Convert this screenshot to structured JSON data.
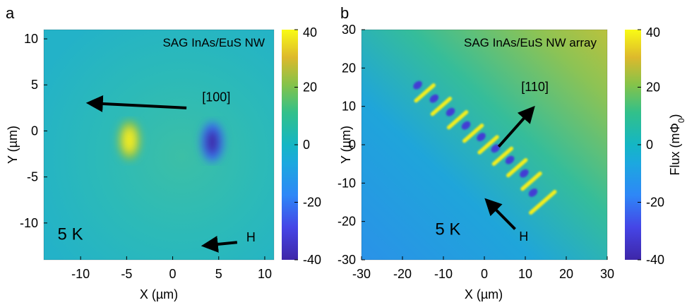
{
  "chart_data": [
    {
      "type": "heatmap",
      "panel_label": "a",
      "title": "SAG InAs/EuS NW",
      "xlabel": "X (µm)",
      "ylabel": "Y (µm)",
      "xlim": [
        -14,
        11
      ],
      "ylim": [
        -14,
        11
      ],
      "xticks": [
        -10,
        -5,
        0,
        5,
        10
      ],
      "xtick_labels": [
        "-10",
        "-5",
        "0",
        "5",
        "10"
      ],
      "yticks": [
        10,
        5,
        0,
        -5,
        -10
      ],
      "ytick_labels": [
        "10",
        "5",
        "0",
        "-5",
        "-10"
      ],
      "colorbar": {
        "range": [
          -40,
          40
        ],
        "ticks": [
          40,
          20,
          0,
          -20,
          -40
        ],
        "tick_labels": [
          "40",
          "20",
          "0",
          "-20",
          "-40"
        ],
        "label": "",
        "colormap": "parula"
      },
      "background_flux": 4,
      "features": [
        {
          "x": -4.7,
          "y": -1.0,
          "flux": 38
        },
        {
          "x": 4.3,
          "y": -1.2,
          "flux": -40
        }
      ],
      "annotations": [
        {
          "text": "[100]",
          "x": 3.2,
          "y": 3.2,
          "arrow_from": [
            1.5,
            2.5
          ],
          "arrow_to": [
            -8.5,
            3.0
          ]
        },
        {
          "text": "5 K",
          "x": -12.5,
          "y": -11.8
        },
        {
          "text": "H",
          "x": 8.0,
          "y": -12.0,
          "arrow_from": [
            7.0,
            -12.1
          ],
          "arrow_to": [
            4.0,
            -12.4
          ]
        }
      ]
    },
    {
      "type": "heatmap",
      "panel_label": "b",
      "title": "SAG InAs/EuS NW array",
      "xlabel": "X (µm)",
      "ylabel": "Y (µm)",
      "xlim": [
        -30,
        30
      ],
      "ylim": [
        -30,
        30
      ],
      "xticks": [
        -30,
        -20,
        -10,
        0,
        10,
        20,
        30
      ],
      "xtick_labels": [
        "-30",
        "-20",
        "-10",
        "0",
        "10",
        "20",
        "30"
      ],
      "yticks": [
        30,
        20,
        10,
        0,
        -10,
        -20,
        -30
      ],
      "ytick_labels": [
        "30",
        "20",
        "10",
        "0",
        "-10",
        "-20",
        "-30"
      ],
      "colorbar": {
        "range": [
          -40,
          40
        ],
        "ticks": [
          40,
          20,
          0,
          -20,
          -40
        ],
        "tick_labels": [
          "40",
          "20",
          "0",
          "-20",
          "-40"
        ],
        "label": "Flux (mΦ0)",
        "colormap": "parula"
      },
      "background_flux": 6,
      "nanowires": [
        {
          "x": -14.0,
          "y": 13.5
        },
        {
          "x": -10.0,
          "y": 10.0
        },
        {
          "x": -6.0,
          "y": 6.5
        },
        {
          "x": -2.2,
          "y": 3.0
        },
        {
          "x": 1.5,
          "y": 0.0
        },
        {
          "x": 5.0,
          "y": -3.0
        },
        {
          "x": 8.5,
          "y": -6.0
        },
        {
          "x": 12.0,
          "y": -9.5
        },
        {
          "x": 15.0,
          "y": -15.0
        }
      ],
      "annotations": [
        {
          "text": "[110]",
          "x": 9.0,
          "y": 14.0,
          "arrow_from": [
            3.5,
            -0.5
          ],
          "arrow_to": [
            11.0,
            8.5
          ]
        },
        {
          "text": "5 K",
          "x": -12.0,
          "y": -23.5
        },
        {
          "text": "H",
          "x": 8.5,
          "y": -25.0,
          "arrow_from": [
            7.5,
            -22.0
          ],
          "arrow_to": [
            1.5,
            -15.5
          ]
        }
      ]
    }
  ]
}
